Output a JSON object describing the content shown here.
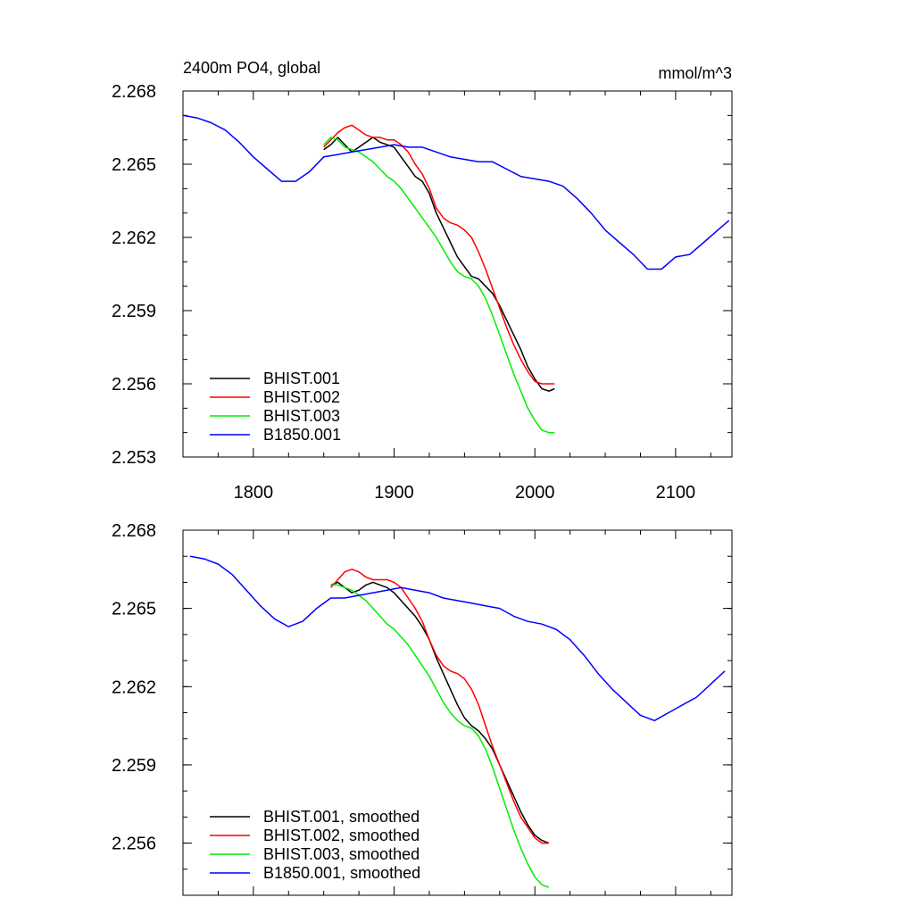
{
  "chart_data": [
    {
      "type": "line",
      "title": "2400m PO4, global",
      "units": "mmol/m^3",
      "xlabel": "",
      "ylabel": "",
      "xlim": [
        1750,
        2140
      ],
      "ylim": [
        2.253,
        2.268
      ],
      "xticks": [
        "1800",
        "1900",
        "2000",
        "2100"
      ],
      "yticks": [
        "2.253",
        "2.256",
        "2.259",
        "2.262",
        "2.265",
        "2.268"
      ],
      "grid": false,
      "legend_position": "bottom-left",
      "series": [
        {
          "name": "BHIST.001",
          "color": "#000000",
          "x": [
            1850,
            1855,
            1860,
            1865,
            1870,
            1875,
            1880,
            1885,
            1890,
            1895,
            1900,
            1905,
            1910,
            1915,
            1920,
            1925,
            1930,
            1935,
            1940,
            1945,
            1950,
            1955,
            1960,
            1965,
            1970,
            1975,
            1980,
            1985,
            1990,
            1995,
            2000,
            2005,
            2010,
            2014
          ],
          "y": [
            2.2656,
            2.2658,
            2.2661,
            2.2658,
            2.2655,
            2.2657,
            2.2659,
            2.2661,
            2.2659,
            2.2658,
            2.2657,
            2.2653,
            2.2649,
            2.2645,
            2.2643,
            2.2638,
            2.263,
            2.2624,
            2.2618,
            2.2612,
            2.2608,
            2.2604,
            2.2603,
            2.26,
            2.2597,
            2.2592,
            2.2586,
            2.258,
            2.2574,
            2.2567,
            2.2562,
            2.2558,
            2.2557,
            2.2558
          ]
        },
        {
          "name": "BHIST.002",
          "color": "#ff0000",
          "x": [
            1850,
            1855,
            1860,
            1865,
            1870,
            1875,
            1880,
            1885,
            1890,
            1895,
            1900,
            1905,
            1910,
            1915,
            1920,
            1925,
            1930,
            1935,
            1940,
            1945,
            1950,
            1955,
            1960,
            1965,
            1970,
            1975,
            1980,
            1985,
            1990,
            1995,
            2000,
            2005,
            2010,
            2014
          ],
          "y": [
            2.2657,
            2.266,
            2.2663,
            2.2665,
            2.2666,
            2.2664,
            2.2662,
            2.2661,
            2.2661,
            2.266,
            2.266,
            2.2658,
            2.2655,
            2.265,
            2.2646,
            2.264,
            2.2632,
            2.2628,
            2.2626,
            2.2625,
            2.2623,
            2.262,
            2.2614,
            2.2607,
            2.2599,
            2.2591,
            2.2583,
            2.2576,
            2.257,
            2.2565,
            2.2561,
            2.256,
            2.256,
            2.256
          ]
        },
        {
          "name": "BHIST.003",
          "color": "#00ee00",
          "x": [
            1850,
            1855,
            1860,
            1865,
            1870,
            1875,
            1880,
            1885,
            1890,
            1895,
            1900,
            1905,
            1910,
            1915,
            1920,
            1925,
            1930,
            1935,
            1940,
            1945,
            1950,
            1955,
            1960,
            1965,
            1970,
            1975,
            1980,
            1985,
            1990,
            1995,
            2000,
            2005,
            2010,
            2014
          ],
          "y": [
            2.2658,
            2.2661,
            2.266,
            2.2657,
            2.2656,
            2.2655,
            2.2653,
            2.2651,
            2.2648,
            2.2645,
            2.2643,
            2.264,
            2.2636,
            2.2632,
            2.2628,
            2.2624,
            2.262,
            2.2615,
            2.261,
            2.2606,
            2.2604,
            2.2603,
            2.26,
            2.2595,
            2.2588,
            2.258,
            2.2572,
            2.2564,
            2.2557,
            2.255,
            2.2545,
            2.2541,
            2.254,
            2.254
          ]
        },
        {
          "name": "B1850.001",
          "color": "#0000ff",
          "x": [
            1750,
            1760,
            1770,
            1780,
            1790,
            1800,
            1810,
            1820,
            1830,
            1840,
            1850,
            1860,
            1870,
            1880,
            1890,
            1900,
            1910,
            1920,
            1930,
            1940,
            1950,
            1960,
            1970,
            1980,
            1990,
            2000,
            2010,
            2020,
            2030,
            2040,
            2050,
            2060,
            2070,
            2080,
            2090,
            2100,
            2110,
            2120,
            2130,
            2138
          ],
          "y": [
            2.267,
            2.2669,
            2.2667,
            2.2664,
            2.2659,
            2.2653,
            2.2648,
            2.2643,
            2.2643,
            2.2647,
            2.2653,
            2.2654,
            2.2655,
            2.2656,
            2.2657,
            2.2658,
            2.2657,
            2.2657,
            2.2655,
            2.2653,
            2.2652,
            2.2651,
            2.2651,
            2.2648,
            2.2645,
            2.2644,
            2.2643,
            2.2641,
            2.2636,
            2.263,
            2.2623,
            2.2618,
            2.2613,
            2.2607,
            2.2607,
            2.2612,
            2.2613,
            2.2618,
            2.2623,
            2.2627
          ]
        }
      ]
    },
    {
      "type": "line",
      "title": "",
      "xlabel": "",
      "ylabel": "",
      "xlim": [
        1750,
        2140
      ],
      "ylim": [
        2.254,
        2.268
      ],
      "xticks": [],
      "yticks": [
        "2.256",
        "2.259",
        "2.262",
        "2.265",
        "2.268"
      ],
      "grid": false,
      "legend_position": "bottom-left",
      "series": [
        {
          "name": "BHIST.001, smoothed",
          "color": "#000000",
          "x": [
            1855,
            1860,
            1865,
            1870,
            1875,
            1880,
            1885,
            1890,
            1895,
            1900,
            1905,
            1910,
            1915,
            1920,
            1925,
            1930,
            1935,
            1940,
            1945,
            1950,
            1955,
            1960,
            1965,
            1970,
            1975,
            1980,
            1985,
            1990,
            1995,
            2000,
            2005,
            2010
          ],
          "y": [
            2.2659,
            2.266,
            2.2658,
            2.2656,
            2.2657,
            2.2659,
            2.266,
            2.2659,
            2.2658,
            2.2656,
            2.2653,
            2.265,
            2.2647,
            2.2643,
            2.2638,
            2.2631,
            2.2625,
            2.2619,
            2.2613,
            2.2608,
            2.2605,
            2.2603,
            2.26,
            2.2596,
            2.259,
            2.2584,
            2.2578,
            2.2572,
            2.2567,
            2.2563,
            2.2561,
            2.256
          ]
        },
        {
          "name": "BHIST.002, smoothed",
          "color": "#ff0000",
          "x": [
            1855,
            1860,
            1865,
            1870,
            1875,
            1880,
            1885,
            1890,
            1895,
            1900,
            1905,
            1910,
            1915,
            1920,
            1925,
            1930,
            1935,
            1940,
            1945,
            1950,
            1955,
            1960,
            1965,
            1970,
            1975,
            1980,
            1985,
            1990,
            1995,
            2000,
            2005,
            2010
          ],
          "y": [
            2.2658,
            2.2661,
            2.2664,
            2.2665,
            2.2664,
            2.2662,
            2.2661,
            2.2661,
            2.2661,
            2.266,
            2.2658,
            2.2654,
            2.265,
            2.2645,
            2.2638,
            2.2632,
            2.2628,
            2.2626,
            2.2625,
            2.2623,
            2.2619,
            2.2613,
            2.2605,
            2.2597,
            2.259,
            2.2583,
            2.2576,
            2.257,
            2.2566,
            2.2562,
            2.256,
            2.256
          ]
        },
        {
          "name": "BHIST.003, smoothed",
          "color": "#00ee00",
          "x": [
            1855,
            1860,
            1865,
            1870,
            1875,
            1880,
            1885,
            1890,
            1895,
            1900,
            1905,
            1910,
            1915,
            1920,
            1925,
            1930,
            1935,
            1940,
            1945,
            1950,
            1955,
            1960,
            1965,
            1970,
            1975,
            1980,
            1985,
            1990,
            1995,
            2000,
            2005,
            2010
          ],
          "y": [
            2.2659,
            2.2659,
            2.2658,
            2.2657,
            2.2655,
            2.2653,
            2.265,
            2.2647,
            2.2644,
            2.2642,
            2.2639,
            2.2636,
            2.2632,
            2.2628,
            2.2624,
            2.2619,
            2.2614,
            2.261,
            2.2607,
            2.2605,
            2.2604,
            2.2601,
            2.2596,
            2.2589,
            2.2581,
            2.2573,
            2.2565,
            2.2558,
            2.2552,
            2.2547,
            2.2544,
            2.2543
          ]
        },
        {
          "name": "B1850.001, smoothed",
          "color": "#0000ff",
          "x": [
            1755,
            1765,
            1775,
            1785,
            1795,
            1805,
            1815,
            1825,
            1835,
            1845,
            1855,
            1865,
            1875,
            1885,
            1895,
            1905,
            1915,
            1925,
            1935,
            1945,
            1955,
            1965,
            1975,
            1985,
            1995,
            2005,
            2015,
            2025,
            2035,
            2045,
            2055,
            2065,
            2075,
            2085,
            2095,
            2105,
            2115,
            2125,
            2135
          ],
          "y": [
            2.267,
            2.2669,
            2.2667,
            2.2663,
            2.2657,
            2.2651,
            2.2646,
            2.2643,
            2.2645,
            2.265,
            2.2654,
            2.2654,
            2.2655,
            2.2656,
            2.2657,
            2.2658,
            2.2657,
            2.2656,
            2.2654,
            2.2653,
            2.2652,
            2.2651,
            2.265,
            2.2647,
            2.2645,
            2.2644,
            2.2642,
            2.2638,
            2.2632,
            2.2625,
            2.2619,
            2.2614,
            2.2609,
            2.2607,
            2.261,
            2.2613,
            2.2616,
            2.2621,
            2.2626
          ]
        }
      ]
    }
  ]
}
